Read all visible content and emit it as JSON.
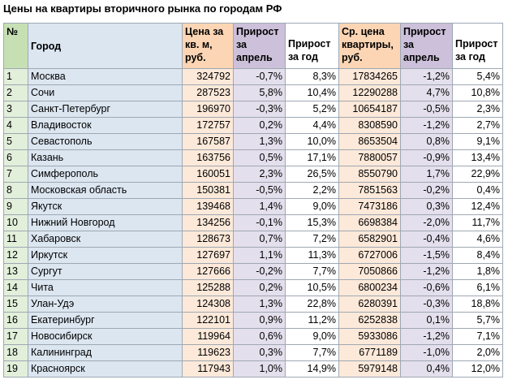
{
  "title": "Цены на квартиры вторичного рынка по городам РФ",
  "headers": {
    "num": "№",
    "city": "Город",
    "price_sqm": "Цена за кв. м, руб.",
    "growth_april": "Прирост за апрель",
    "growth_year": "Прирост за год",
    "avg_price": "Ср. цена квартиры, руб.",
    "growth_april2": "Прирост за апрель",
    "growth_year2": "Прирост за год"
  },
  "rows": [
    [
      "1",
      "Москва",
      "324792",
      "-0,7%",
      "8,3%",
      "17834265",
      "-1,2%",
      "5,4%"
    ],
    [
      "2",
      "Сочи",
      "287523",
      "5,8%",
      "10,4%",
      "12290288",
      "4,7%",
      "10,8%"
    ],
    [
      "3",
      "Санкт-Петербург",
      "196970",
      "-0,3%",
      "5,2%",
      "10654187",
      "-0,5%",
      "2,3%"
    ],
    [
      "4",
      "Владивосток",
      "172757",
      "0,2%",
      "4,4%",
      "8308590",
      "-1,2%",
      "2,7%"
    ],
    [
      "5",
      "Севастополь",
      "167587",
      "1,3%",
      "10,0%",
      "8653504",
      "0,8%",
      "9,1%"
    ],
    [
      "6",
      "Казань",
      "163756",
      "0,5%",
      "17,1%",
      "7880057",
      "-0,9%",
      "13,4%"
    ],
    [
      "7",
      "Симферополь",
      "160051",
      "2,3%",
      "26,5%",
      "8550790",
      "1,7%",
      "22,9%"
    ],
    [
      "8",
      "Московская область",
      "150381",
      "-0,5%",
      "2,2%",
      "7851563",
      "-0,2%",
      "0,4%"
    ],
    [
      "9",
      "Якутск",
      "139468",
      "1,4%",
      "9,0%",
      "7473186",
      "0,3%",
      "12,4%"
    ],
    [
      "10",
      "Нижний Новгород",
      "134256",
      "-0,1%",
      "15,3%",
      "6698384",
      "-2,0%",
      "11,7%"
    ],
    [
      "11",
      "Хабаровск",
      "128673",
      "0,7%",
      "7,2%",
      "6582901",
      "-0,4%",
      "4,6%"
    ],
    [
      "12",
      "Иркутск",
      "127697",
      "1,1%",
      "11,3%",
      "6727006",
      "-1,5%",
      "8,4%"
    ],
    [
      "13",
      "Сургут",
      "127666",
      "-0,2%",
      "7,7%",
      "7050866",
      "-1,2%",
      "1,8%"
    ],
    [
      "14",
      "Чита",
      "125288",
      "0,2%",
      "10,5%",
      "6800234",
      "-0,6%",
      "6,1%"
    ],
    [
      "15",
      "Улан-Удэ",
      "124308",
      "1,3%",
      "22,8%",
      "6280391",
      "-0,3%",
      "18,8%"
    ],
    [
      "16",
      "Екатеринбург",
      "122101",
      "0,9%",
      "11,2%",
      "6252838",
      "0,1%",
      "5,7%"
    ],
    [
      "17",
      "Новосибирск",
      "119964",
      "0,6%",
      "9,0%",
      "5933086",
      "-1,2%",
      "7,1%"
    ],
    [
      "18",
      "Калининград",
      "119623",
      "0,3%",
      "7,7%",
      "6771189",
      "-1,0%",
      "2,0%"
    ],
    [
      "19",
      "Красноярск",
      "117943",
      "1,0%",
      "14,9%",
      "5979148",
      "0,4%",
      "12,0%"
    ]
  ]
}
